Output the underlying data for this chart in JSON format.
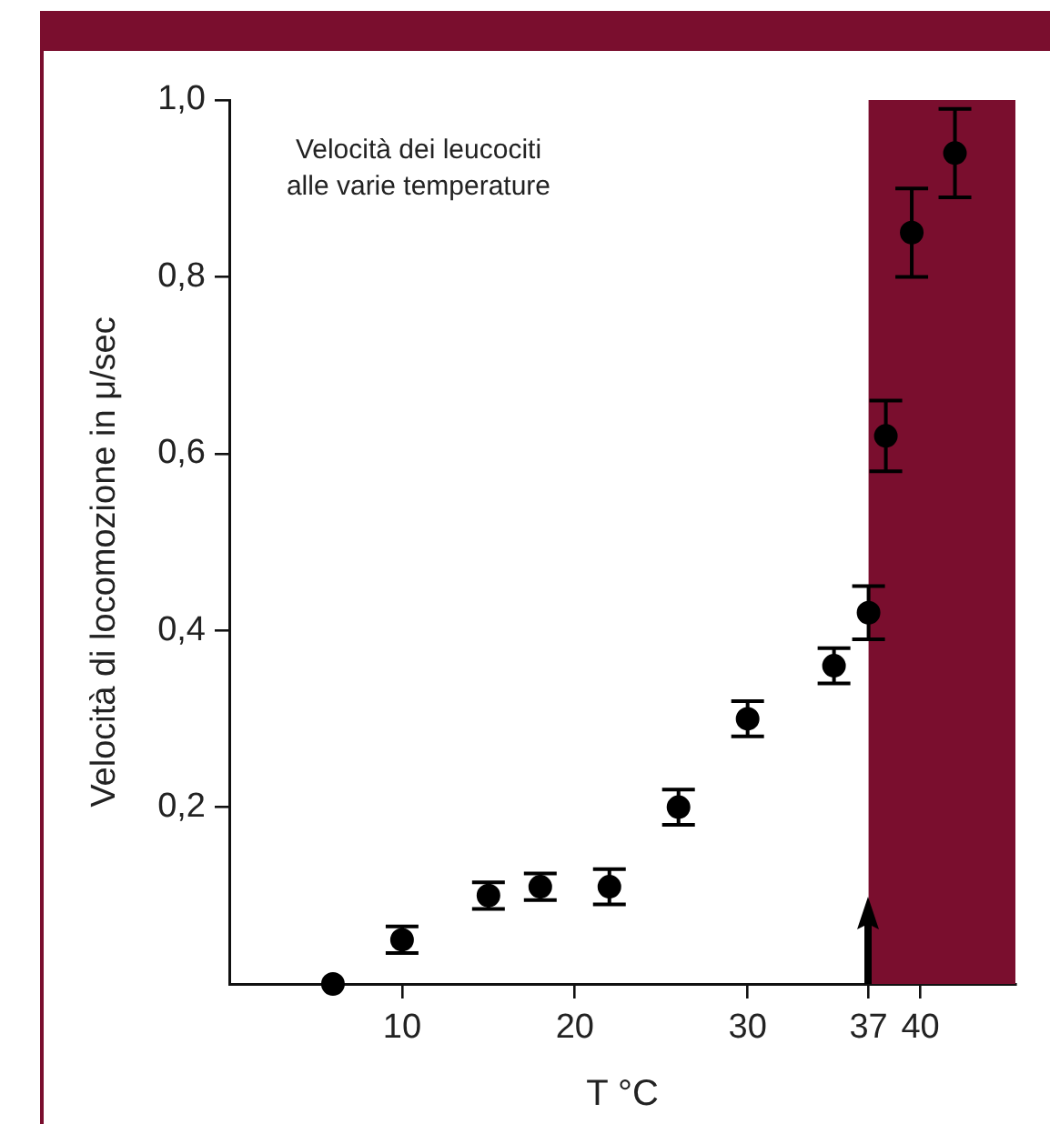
{
  "chart_data": {
    "type": "scatter",
    "title": "Velocità dei leucociti\nalle varie temperature",
    "xlabel": "T °C",
    "ylabel": "Velocità di locomozione in μ/sec",
    "x": [
      6,
      10,
      15,
      18,
      22,
      26,
      30,
      35,
      37,
      38,
      39.5,
      42
    ],
    "series": [
      {
        "color": "#000000",
        "values": [
          0,
          0.05,
          0.1,
          0.11,
          0.11,
          0.2,
          0.3,
          0.36,
          0.42,
          0.62,
          0.85,
          0.94
        ],
        "errors": [
          null,
          0.015,
          0.015,
          0.015,
          0.02,
          0.02,
          0.02,
          0.02,
          0.03,
          0.04,
          0.05,
          0.05
        ]
      }
    ],
    "xlim": [
      0,
      45.5
    ],
    "xticks": [
      10,
      20,
      30,
      37,
      40
    ],
    "ylim": [
      0,
      1.0
    ],
    "yticks": [
      {
        "value": 0.2,
        "label": "0,2"
      },
      {
        "value": 0.4,
        "label": "0,4"
      },
      {
        "value": 0.6,
        "label": "0,6"
      },
      {
        "value": 0.8,
        "label": "0,8"
      },
      {
        "value": 1.0,
        "label": "1,0"
      }
    ],
    "bands": [
      {
        "axis": "x",
        "from": 37,
        "to": 45.5,
        "color": "#7a0e2e"
      }
    ],
    "grid": false,
    "legend": false,
    "marker": "circle"
  }
}
